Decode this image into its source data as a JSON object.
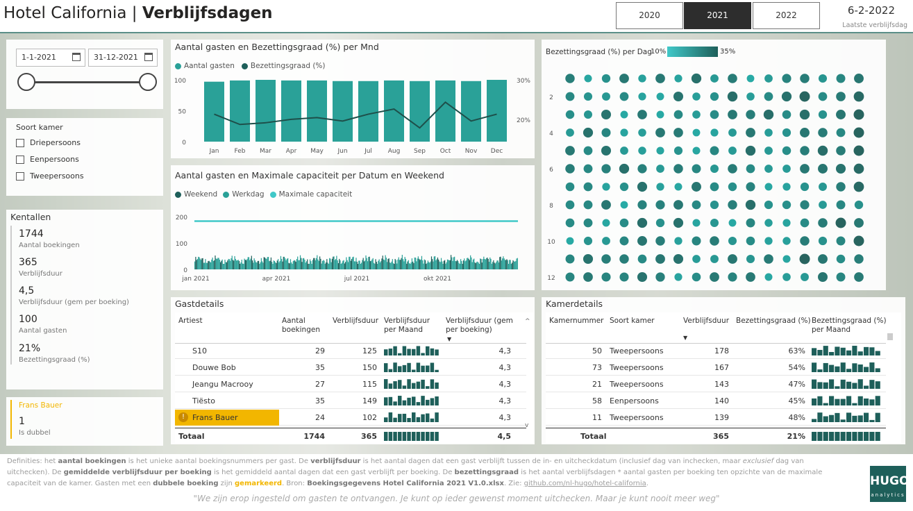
{
  "header": {
    "title_plain": "Hotel California",
    "separator": "|",
    "title_bold": "Verblijfsdagen",
    "years": [
      "2020",
      "2021",
      "2022"
    ],
    "active_year": "2021",
    "last_date": "6-2-2022",
    "last_date_label": "Laatste verblijfsdag"
  },
  "filters": {
    "start_date": "1-1-2021",
    "end_date": "31-12-2021",
    "room_type_title": "Soort kamer",
    "room_types": [
      "Driepersoons",
      "Eenpersoons",
      "Tweepersoons"
    ]
  },
  "kpis": {
    "title": "Kentallen",
    "items": [
      {
        "value": "1744",
        "label": "Aantal boekingen"
      },
      {
        "value": "365",
        "label": "Verblijfsduur"
      },
      {
        "value": "4,5",
        "label": "Verblijfsduur (gem per boeking)"
      },
      {
        "value": "100",
        "label": "Aantal gasten"
      },
      {
        "value": "21%",
        "label": "Bezettingsgraad (%)"
      }
    ]
  },
  "duplicate": {
    "name": "Frans Bauer",
    "value": "1",
    "label": "Is dubbel"
  },
  "chart_data": [
    {
      "type": "bar",
      "title": "Aantal gasten en Bezettingsgraad (%) per Mnd",
      "legend": [
        "Aantal gasten",
        "Bezettingsgraad (%)"
      ],
      "categories": [
        "Jan",
        "Feb",
        "Mar",
        "Apr",
        "May",
        "Jun",
        "Jul",
        "Aug",
        "Sep",
        "Oct",
        "Nov",
        "Dec"
      ],
      "series": [
        {
          "name": "Aantal gasten",
          "values": [
            97,
            99,
            100,
            99,
            99,
            98,
            98,
            99,
            98,
            99,
            98,
            100
          ]
        },
        {
          "name": "Bezettingsgraad (%)",
          "values": [
            22,
            19,
            19.5,
            20.5,
            21,
            20,
            22,
            23.5,
            18,
            25.5,
            20,
            22
          ]
        }
      ],
      "y_ticks": [
        "100",
        "50",
        "0"
      ],
      "y2_ticks": [
        "30%",
        "20%"
      ],
      "ylim": [
        0,
        100
      ],
      "y2lim": [
        14,
        32
      ]
    },
    {
      "type": "bar",
      "title": "Aantal gasten en Maximale capaciteit per Datum en Weekend",
      "legend": [
        "Weekend",
        "Werkdag",
        "Maximale capaciteit"
      ],
      "max_capacity": 183,
      "y_ticks": [
        "200",
        "100",
        "0"
      ],
      "x_ticks": [
        "jan 2021",
        "apr 2021",
        "jul 2021",
        "okt 2021"
      ],
      "ylim": [
        0,
        200
      ]
    },
    {
      "type": "scatter",
      "title": "Bezettingsgraad (%) per Dag",
      "scale_min": "10%",
      "scale_max": "35%",
      "row_labels": [
        "2",
        "4",
        "6",
        "8",
        "10",
        "12"
      ]
    }
  ],
  "guests": {
    "title": "Gastdetails",
    "columns": [
      "Artiest",
      "Aantal boekingen",
      "Verblijfsduur",
      "Verblijfsduur per Maand",
      "Verblijfsduur (gem per boeking)"
    ],
    "rows": [
      {
        "name": "S10",
        "bookings": "29",
        "stay": "125",
        "avg": "4,3"
      },
      {
        "name": "Douwe Bob",
        "bookings": "35",
        "stay": "150",
        "avg": "4,3"
      },
      {
        "name": "Jeangu Macrooy",
        "bookings": "27",
        "stay": "115",
        "avg": "4,3"
      },
      {
        "name": "Tiësto",
        "bookings": "35",
        "stay": "149",
        "avg": "4,3"
      },
      {
        "name": "Frans Bauer",
        "bookings": "24",
        "stay": "102",
        "avg": "4,3",
        "highlight": true
      }
    ],
    "total": {
      "label": "Totaal",
      "bookings": "1744",
      "stay": "365",
      "avg": "4,5"
    }
  },
  "rooms": {
    "title": "Kamerdetails",
    "columns": [
      "Kamernummer",
      "Soort kamer",
      "Verblijfsduur",
      "Bezettingsgraad (%)",
      "Bezettingsgraad (%) per Maand"
    ],
    "rows": [
      {
        "nr": "50",
        "type": "Tweepersoons",
        "stay": "178",
        "occ": "63%"
      },
      {
        "nr": "73",
        "type": "Tweepersoons",
        "stay": "167",
        "occ": "54%"
      },
      {
        "nr": "21",
        "type": "Tweepersoons",
        "stay": "143",
        "occ": "47%"
      },
      {
        "nr": "58",
        "type": "Eenpersoons",
        "stay": "140",
        "occ": "45%"
      },
      {
        "nr": "11",
        "type": "Tweepersoons",
        "stay": "139",
        "occ": "48%"
      }
    ],
    "total": {
      "label": "Totaal",
      "stay": "365",
      "occ": "21%"
    }
  },
  "footer": {
    "def1": "Definities: het ",
    "b1": "aantal boekingen",
    "def2": " is het unieke aantal boekingsnummers per gast. De ",
    "b2": "verblijfsduur",
    "def3": " is het aantal dagen dat een gast verblijft tussen de in- en uitcheckdatum (inclusief dag van inchecken, maar ",
    "i1": "exclusief",
    "def4": " dag van uitchecken). De ",
    "b3": "gemiddelde verblijfsduur per boeking",
    "def5": " is het gemiddeld aantal dagen dat een gast verblijft per boeking. De ",
    "b4": "bezettingsgraad",
    "def6": " is het aantal verblijfsdagen * aantal gasten per boeking ten opzichte van de maximale capaciteit van de  kamer. Gasten met een ",
    "b5": "dubbele boeking",
    "def7": " zijn ",
    "hl": "gemarkeerd",
    "def8": ". Bron: ",
    "b6": "Boekingsgegevens Hotel California 2021 V1.0.xlsx",
    "def9": ". Zie: ",
    "link": "github.com/nl-hugo/hotel-california",
    "def10": ".",
    "quote": "\"We zijn erop ingesteld om gasten te ontvangen. Je kunt op ieder gewenst moment uitchecken. Maar je kunt nooit meer weg\"",
    "logo": "HUGO",
    "logo_sub": "analytics"
  },
  "colors": {
    "teal": "#2aa198",
    "dark": "#1e5f5a",
    "light": "#40c8c8",
    "highlight": "#f2b600"
  }
}
